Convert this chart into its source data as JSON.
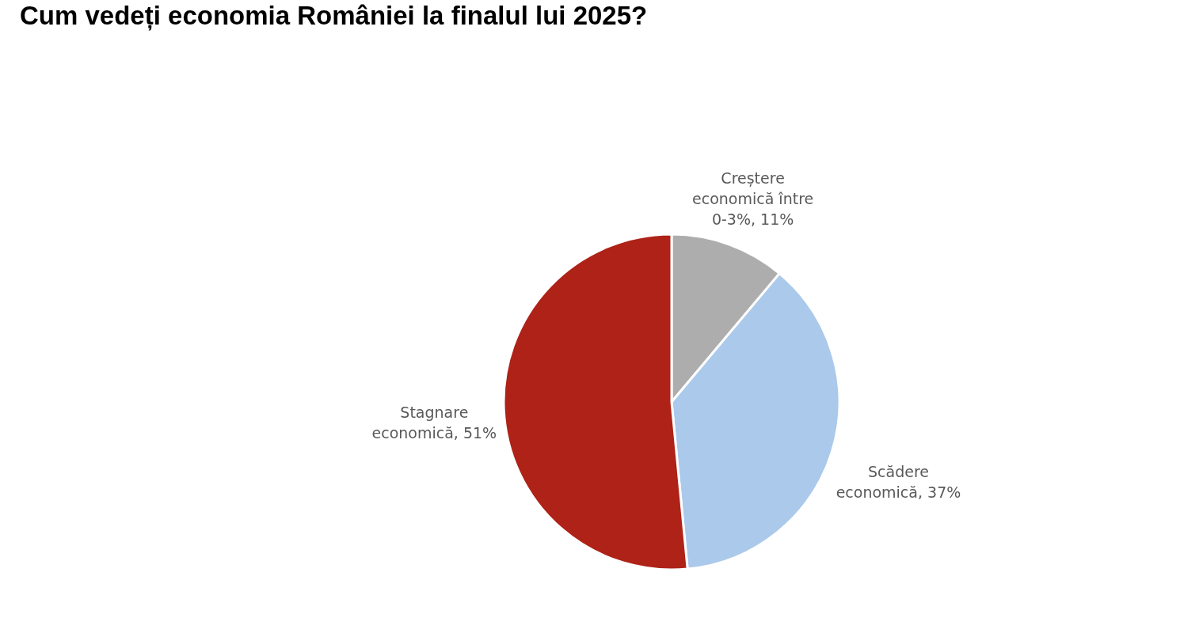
{
  "chart_data": {
    "type": "pie",
    "title": "Cum vedeți economia României la finalul lui 2025?",
    "categories": [
      "Creștere economică între 0-3%",
      "Scădere economică",
      "Stagnare economică"
    ],
    "values": [
      11,
      37,
      51
    ],
    "value_labels": [
      "11%",
      "37%",
      "51%"
    ],
    "colors": [
      "#adadad",
      "#abc9ea",
      "#ae2217"
    ],
    "legend": false
  }
}
